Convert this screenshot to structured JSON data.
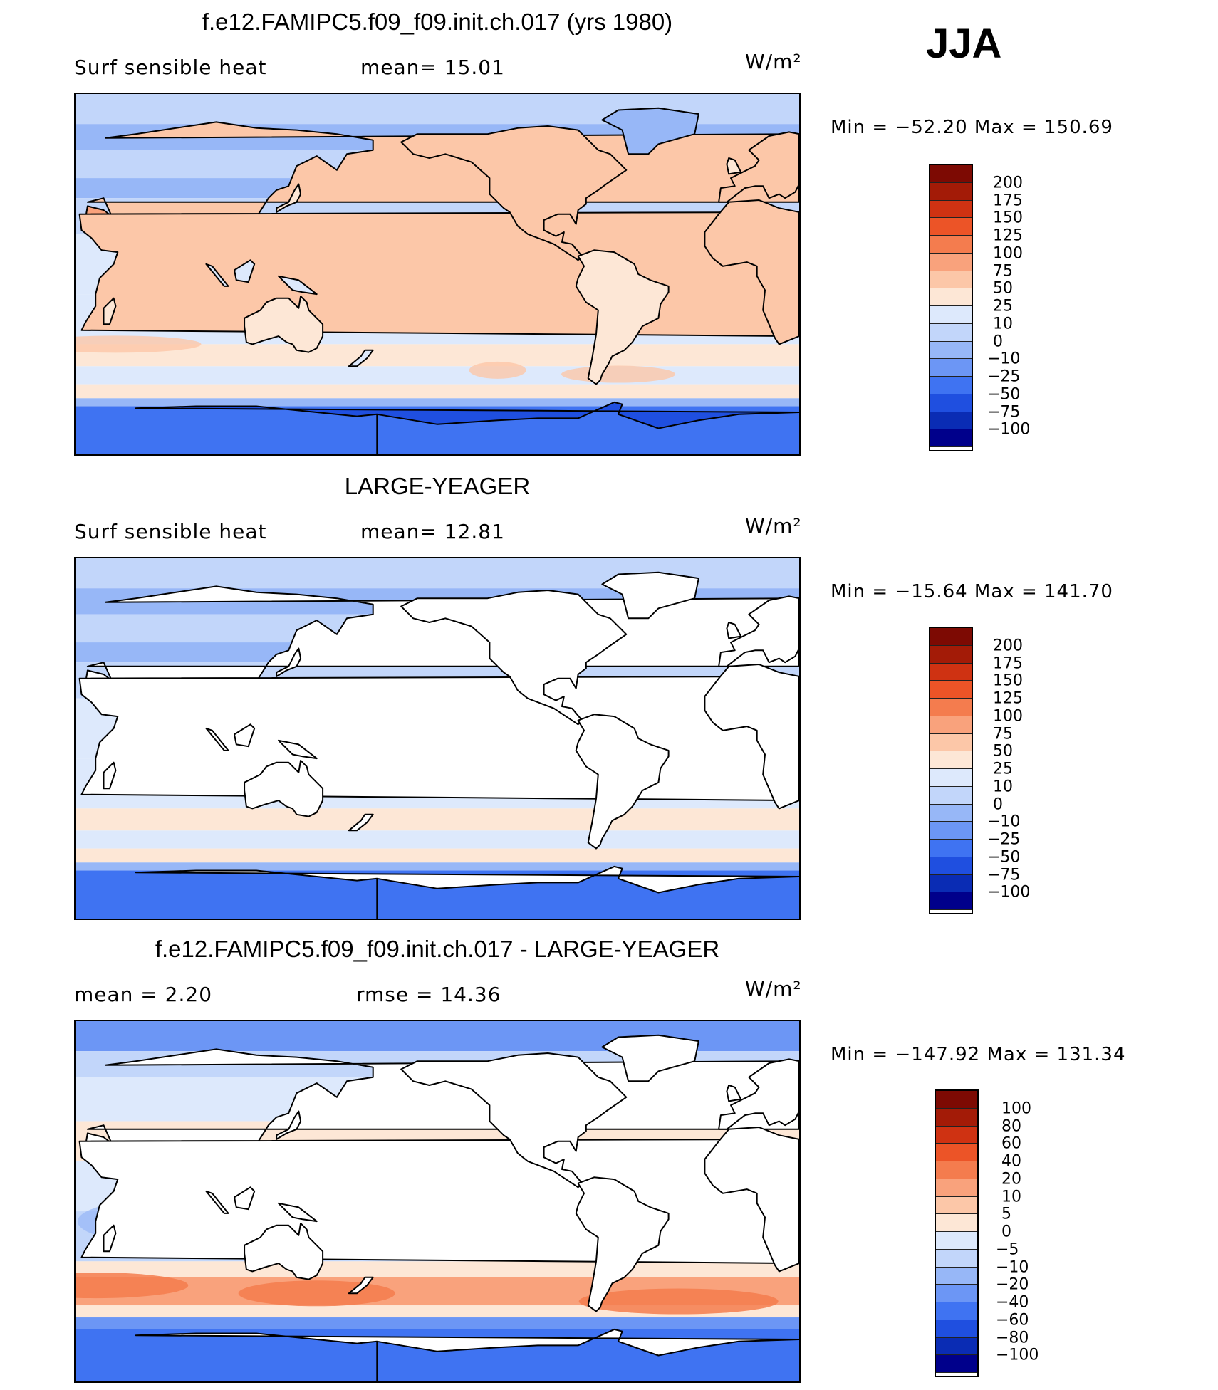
{
  "season": "JJA",
  "palette": {
    "ten_level": [
      "#00008b",
      "#0a2cb4",
      "#1f4fe0",
      "#3f73f2",
      "#6c96f5",
      "#97b7f7",
      "#c2d6fa",
      "#dde9fc",
      "#fde7d6",
      "#fcc7a8",
      "#f9a27c",
      "#f47c4e",
      "#ec5427",
      "#cf3212",
      "#a31b07",
      "#7d0a03"
    ],
    "land": "#ffffff",
    "coast": "#000000"
  },
  "panels": [
    {
      "title": "f.e12.FAMIPC5.f09_f09.init.ch.017 (yrs 1980)",
      "left_label": "Surf  sensible  heat",
      "middle_label": "mean=   15.01",
      "units": "W/m²",
      "minmax": "Min  =  −52.20  Max  =  150.69",
      "colorbar_labels": [
        "200",
        "175",
        "150",
        "125",
        "100",
        "75",
        "50",
        "25",
        "10",
        "0",
        "−10",
        "−25",
        "−50",
        "−75",
        "−100"
      ],
      "land_masked": false
    },
    {
      "title": "LARGE-YEAGER",
      "left_label": "Surf  sensible  heat",
      "middle_label": "mean=   12.81",
      "units": "W/m²",
      "minmax": "Min  =  −15.64  Max  =  141.70",
      "colorbar_labels": [
        "200",
        "175",
        "150",
        "125",
        "100",
        "75",
        "50",
        "25",
        "10",
        "0",
        "−10",
        "−25",
        "−50",
        "−75",
        "−100"
      ],
      "land_masked": true
    },
    {
      "title": "f.e12.FAMIPC5.f09_f09.init.ch.017 - LARGE-YEAGER",
      "left_label": "mean  =      2.20",
      "middle_label": "rmse  =     14.36",
      "units": "W/m²",
      "minmax": "Min  =  −147.92  Max  =  131.34",
      "colorbar_labels": [
        "100",
        "80",
        "60",
        "40",
        "20",
        "10",
        "5",
        "0",
        "−5",
        "−10",
        "−20",
        "−40",
        "−60",
        "−80",
        "−100"
      ],
      "land_masked": true
    }
  ]
}
